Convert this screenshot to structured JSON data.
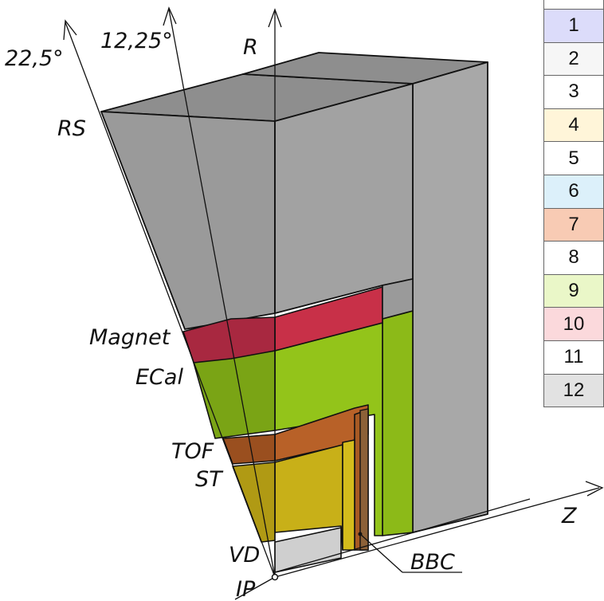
{
  "labels": {
    "angle_outer": "22,5°",
    "angle_inner": "12,25°",
    "axis_r": "R",
    "axis_z": "Z",
    "rs": "RS",
    "magnet": "Magnet",
    "ecal": "ECal",
    "tof": "TOF",
    "st": "ST",
    "vd": "VD",
    "ip": "IP",
    "bbc": "BBC"
  },
  "legend": [
    {
      "label": "1",
      "color": "#dcdcfa"
    },
    {
      "label": "2",
      "color": "#f6f6f6"
    },
    {
      "label": "3",
      "color": "#ffffff"
    },
    {
      "label": "4",
      "color": "#fff5d9"
    },
    {
      "label": "5",
      "color": "#ffffff"
    },
    {
      "label": "6",
      "color": "#dcf0fa"
    },
    {
      "label": "7",
      "color": "#f8cbb4"
    },
    {
      "label": "8",
      "color": "#ffffff"
    },
    {
      "label": "9",
      "color": "#eaf7c8"
    },
    {
      "label": "10",
      "color": "#fbd9dc"
    },
    {
      "label": "11",
      "color": "#ffffff"
    },
    {
      "label": "12",
      "color": "#e2e2e2"
    }
  ],
  "colors": {
    "rs_front": "#9a9a9a",
    "rs_top": "#8e8e8e",
    "rs_side": "#a8a8a8",
    "ecal_front": "#93c41a",
    "ecal_dark": "#7aa415",
    "magnet": "#c83048",
    "magnet_dark": "#a82840",
    "tof": "#b86128",
    "tof_dark": "#9a4f1f",
    "st": "#c8b018",
    "st_dark": "#b09a14",
    "vd": "#cfcfcf",
    "bbc": "#8c6138"
  }
}
